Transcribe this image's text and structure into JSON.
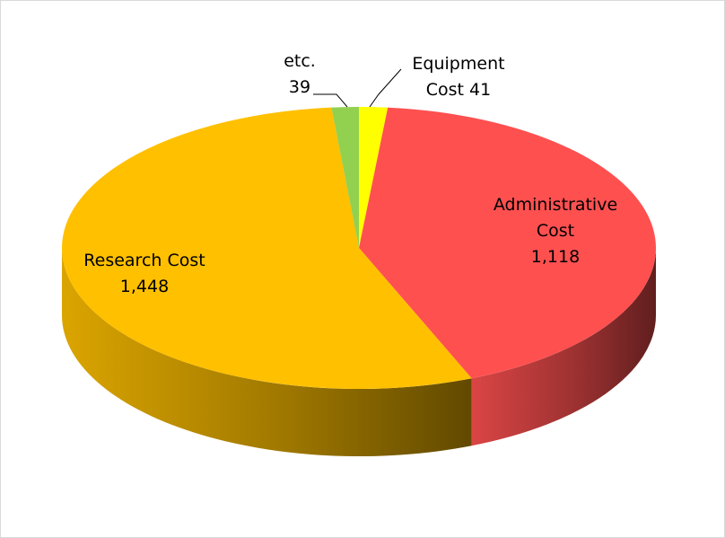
{
  "chart_data": {
    "type": "pie",
    "style": "3d",
    "title": "",
    "slices": [
      {
        "name": "Equipment Cost",
        "label_lines": [
          "Equipment",
          "Cost 41"
        ],
        "value": 41,
        "color": "#FFFF00"
      },
      {
        "name": "Administrative Cost",
        "label_lines": [
          "Administrative",
          "Cost",
          "1,118"
        ],
        "value": 1118,
        "color": "#FF5050"
      },
      {
        "name": "Research Cost",
        "label_lines": [
          "Research Cost",
          "1,448"
        ],
        "value": 1448,
        "color": "#FFC000"
      },
      {
        "name": "etc.",
        "label_lines": [
          "etc.",
          "39"
        ],
        "value": 39,
        "color": "#92D050"
      }
    ],
    "legend": "none"
  }
}
